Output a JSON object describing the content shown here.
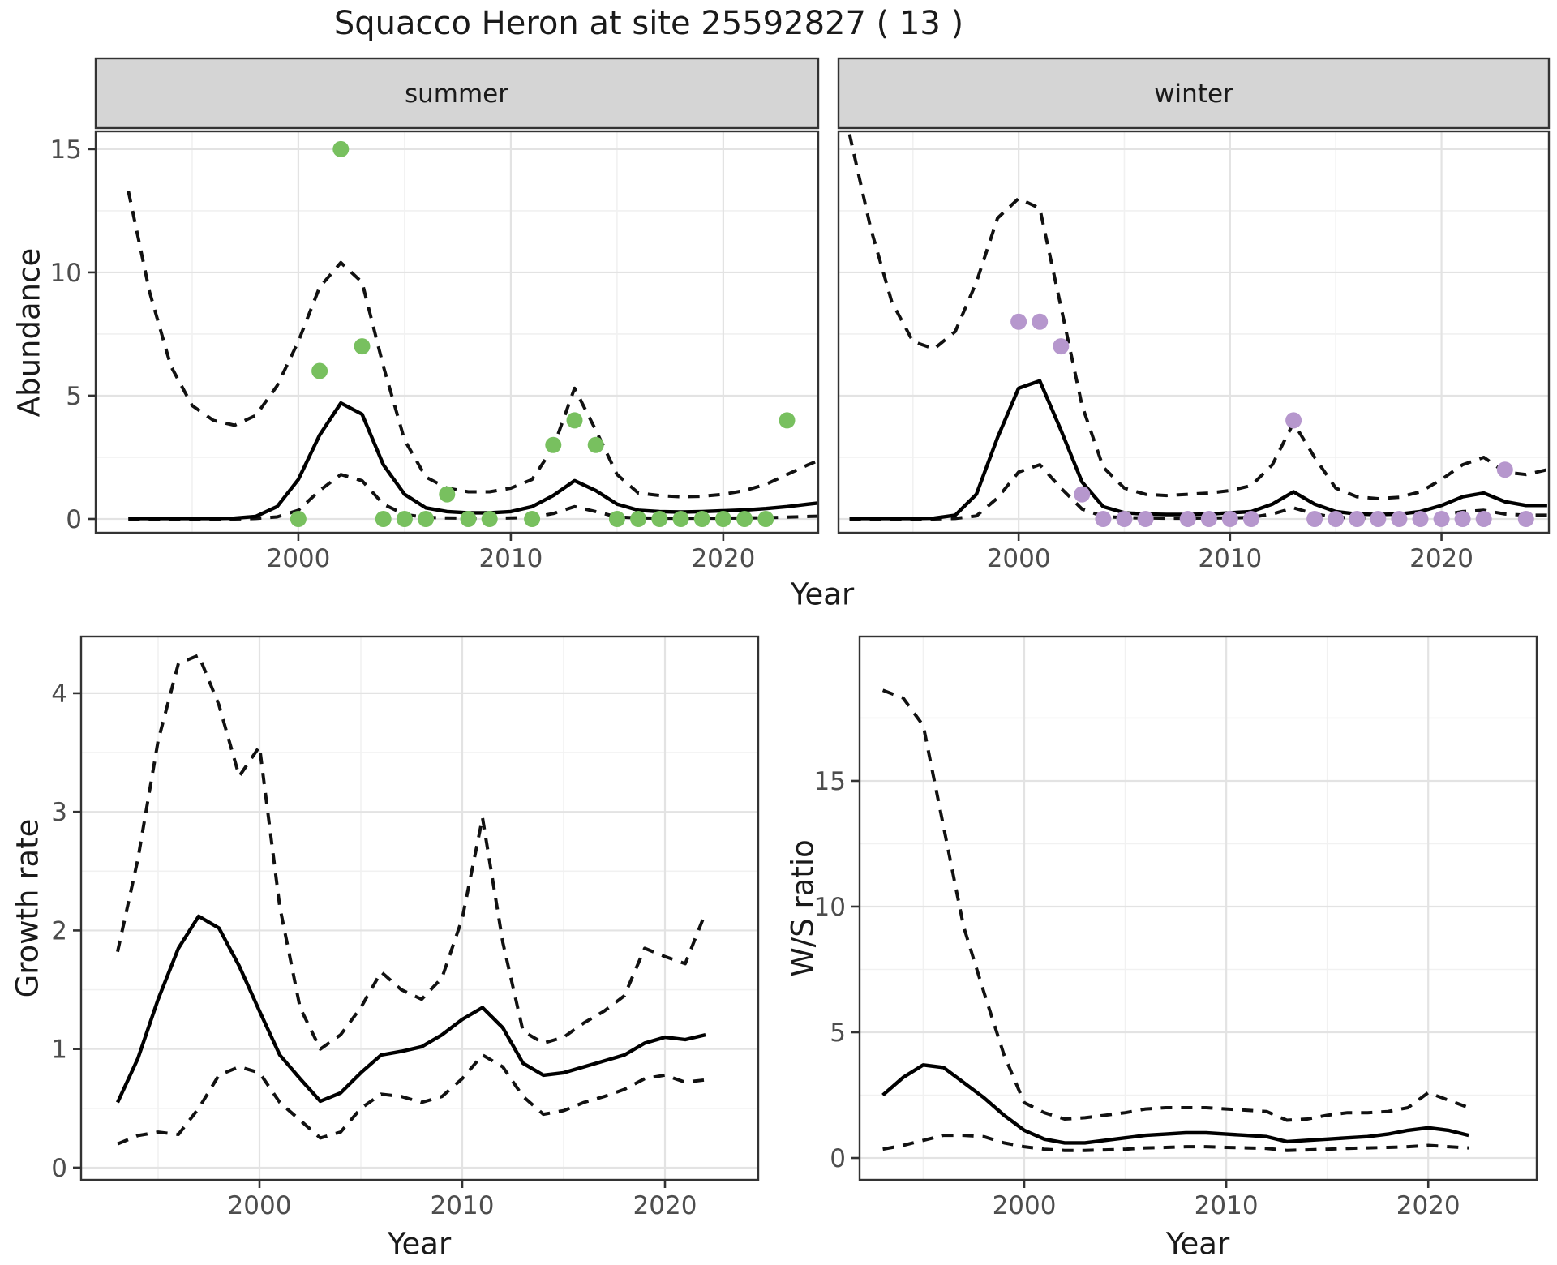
{
  "title": "Squacco Heron at site 25592827 ( 13 )",
  "colors": {
    "summer_point": "#78c05f",
    "winter_point": "#b697cd",
    "fit_line": "#000000",
    "ci_line": "#111111",
    "panel_border": "#333333",
    "strip_bg": "#d5d5d5",
    "grid_major": "#e3e3e3",
    "grid_minor": "#f1f1f1",
    "axis_text": "#4d4d4d",
    "tick_mark": "#333333"
  },
  "chart_data": [
    {
      "id": "abundance_summer",
      "type": "line",
      "facet_label": "summer",
      "xlabel": "Year",
      "ylabel": "Abundance",
      "xlim": [
        1990.46,
        2024.47
      ],
      "ylim": [
        -0.56,
        15.72
      ],
      "xticks": [
        2000,
        2010,
        2020
      ],
      "yticks": [
        0,
        5,
        10,
        15
      ],
      "xminor": [
        1995,
        2005,
        2015
      ],
      "yminor": [
        2.5,
        7.5,
        12.5
      ],
      "show_y_axis": true,
      "series": [
        {
          "name": "fit",
          "style": "solid",
          "x": [
            1992,
            1993,
            1994,
            1995,
            1996,
            1997,
            1998,
            1999,
            2000,
            2001,
            2002,
            2003,
            2004,
            2005,
            2006,
            2007,
            2008,
            2009,
            2010,
            2011,
            2012,
            2013,
            2014,
            2015,
            2016,
            2017,
            2018,
            2019,
            2020,
            2021,
            2022,
            2023,
            2024,
            2025
          ],
          "y": [
            0.02,
            0.02,
            0.02,
            0.02,
            0.02,
            0.03,
            0.1,
            0.5,
            1.6,
            3.4,
            4.7,
            4.25,
            2.2,
            1.0,
            0.45,
            0.3,
            0.25,
            0.25,
            0.3,
            0.5,
            0.95,
            1.55,
            1.15,
            0.6,
            0.35,
            0.3,
            0.28,
            0.3,
            0.33,
            0.36,
            0.42,
            0.5,
            0.6,
            0.7
          ]
        },
        {
          "name": "upper_ci",
          "style": "dashed",
          "x": [
            1992,
            1993,
            1994,
            1995,
            1996,
            1997,
            1998,
            1999,
            2000,
            2001,
            2002,
            2003,
            2004,
            2005,
            2006,
            2007,
            2008,
            2009,
            2010,
            2011,
            2012,
            2013,
            2014,
            2015,
            2016,
            2017,
            2018,
            2019,
            2020,
            2021,
            2022,
            2023,
            2024,
            2025
          ],
          "y": [
            13.3,
            9.2,
            6.2,
            4.6,
            4.0,
            3.8,
            4.2,
            5.4,
            7.2,
            9.4,
            10.4,
            9.6,
            6.2,
            3.2,
            1.7,
            1.25,
            1.1,
            1.1,
            1.25,
            1.6,
            2.9,
            5.3,
            3.6,
            1.8,
            1.05,
            0.95,
            0.9,
            0.92,
            1.0,
            1.15,
            1.4,
            1.8,
            2.2,
            2.55
          ]
        },
        {
          "name": "lower_ci",
          "style": "dashed",
          "x": [
            1992,
            1993,
            1994,
            1995,
            1996,
            1997,
            1998,
            1999,
            2000,
            2001,
            2002,
            2003,
            2004,
            2005,
            2006,
            2007,
            2008,
            2009,
            2010,
            2011,
            2012,
            2013,
            2014,
            2015,
            2016,
            2017,
            2018,
            2019,
            2020,
            2021,
            2022,
            2023,
            2024,
            2025
          ],
          "y": [
            0,
            0,
            0,
            0,
            0,
            0,
            0.02,
            0.08,
            0.35,
            1.15,
            1.8,
            1.55,
            0.6,
            0.18,
            0.06,
            0.04,
            0.03,
            0.03,
            0.04,
            0.06,
            0.22,
            0.5,
            0.3,
            0.08,
            0.04,
            0.03,
            0.03,
            0.03,
            0.03,
            0.04,
            0.05,
            0.07,
            0.1,
            0.12
          ]
        }
      ],
      "points": {
        "name": "observed_counts",
        "color_key": "summer_point",
        "x": [
          2000,
          2001,
          2002,
          2003,
          2004,
          2005,
          2006,
          2007,
          2008,
          2009,
          2011,
          2012,
          2013,
          2014,
          2015,
          2016,
          2017,
          2018,
          2019,
          2020,
          2021,
          2022,
          2023
        ],
        "y": [
          0,
          6,
          15,
          7,
          0,
          0,
          0,
          1,
          0,
          0,
          0,
          3,
          4,
          3,
          0,
          0,
          0,
          0,
          0,
          0,
          0,
          0,
          4
        ]
      }
    },
    {
      "id": "abundance_winter",
      "type": "line",
      "facet_label": "winter",
      "xlabel": "Year",
      "ylabel": "Abundance",
      "xlim": [
        1991.48,
        2025.08
      ],
      "ylim": [
        -0.56,
        15.72
      ],
      "xticks": [
        2000,
        2010,
        2020
      ],
      "yticks": [
        0,
        5,
        10,
        15
      ],
      "xminor": [
        1995,
        2005,
        2015
      ],
      "yminor": [
        2.5,
        7.5,
        12.5
      ],
      "show_y_axis": false,
      "series": [
        {
          "name": "fit",
          "style": "solid",
          "x": [
            1992,
            1993,
            1994,
            1995,
            1996,
            1997,
            1998,
            1999,
            2000,
            2001,
            2002,
            2003,
            2004,
            2005,
            2006,
            2007,
            2008,
            2009,
            2010,
            2011,
            2012,
            2013,
            2014,
            2015,
            2016,
            2017,
            2018,
            2019,
            2020,
            2021,
            2022,
            2023,
            2024,
            2025
          ],
          "y": [
            0.02,
            0.02,
            0.02,
            0.02,
            0.03,
            0.15,
            1.0,
            3.3,
            5.3,
            5.6,
            3.6,
            1.5,
            0.5,
            0.25,
            0.2,
            0.18,
            0.18,
            0.2,
            0.25,
            0.3,
            0.6,
            1.1,
            0.6,
            0.3,
            0.2,
            0.18,
            0.2,
            0.3,
            0.55,
            0.9,
            1.05,
            0.7,
            0.55,
            0.55
          ]
        },
        {
          "name": "upper_ci",
          "style": "dashed",
          "x": [
            1992,
            1993,
            1994,
            1995,
            1996,
            1997,
            1998,
            1999,
            2000,
            2001,
            2002,
            2003,
            2004,
            2005,
            2006,
            2007,
            2008,
            2009,
            2010,
            2011,
            2012,
            2013,
            2014,
            2015,
            2016,
            2017,
            2018,
            2019,
            2020,
            2021,
            2022,
            2023,
            2024,
            2025
          ],
          "y": [
            15.6,
            11.8,
            8.8,
            7.2,
            6.9,
            7.6,
            9.6,
            12.2,
            13.0,
            12.6,
            8.6,
            4.6,
            2.1,
            1.25,
            1.0,
            0.95,
            1.0,
            1.05,
            1.15,
            1.35,
            2.2,
            3.9,
            2.5,
            1.25,
            0.9,
            0.82,
            0.88,
            1.1,
            1.6,
            2.2,
            2.5,
            1.9,
            1.8,
            2.0
          ]
        },
        {
          "name": "lower_ci",
          "style": "dashed",
          "x": [
            1992,
            1993,
            1994,
            1995,
            1996,
            1997,
            1998,
            1999,
            2000,
            2001,
            2002,
            2003,
            2004,
            2005,
            2006,
            2007,
            2008,
            2009,
            2010,
            2011,
            2012,
            2013,
            2014,
            2015,
            2016,
            2017,
            2018,
            2019,
            2020,
            2021,
            2022,
            2023,
            2024,
            2025
          ],
          "y": [
            0,
            0,
            0,
            0,
            0,
            0.02,
            0.12,
            0.85,
            1.9,
            2.2,
            1.25,
            0.4,
            0.1,
            0.05,
            0.04,
            0.03,
            0.03,
            0.04,
            0.04,
            0.06,
            0.2,
            0.45,
            0.2,
            0.06,
            0.04,
            0.03,
            0.04,
            0.06,
            0.15,
            0.3,
            0.35,
            0.2,
            0.15,
            0.15
          ]
        }
      ],
      "points": {
        "name": "observed_counts",
        "color_key": "winter_point",
        "x": [
          2000,
          2001,
          2002,
          2003,
          2004,
          2005,
          2006,
          2008,
          2009,
          2010,
          2011,
          2013,
          2014,
          2015,
          2016,
          2017,
          2018,
          2019,
          2020,
          2021,
          2022,
          2023,
          2024
        ],
        "y": [
          8,
          8,
          7,
          1,
          0,
          0,
          0,
          0,
          0,
          0,
          0,
          4,
          0,
          0,
          0,
          0,
          0,
          0,
          0,
          0,
          0,
          2,
          0
        ]
      }
    },
    {
      "id": "growth_rate",
      "type": "line",
      "facet_label": null,
      "xlabel": "Year",
      "ylabel": "Growth rate",
      "xlim": [
        1991.2,
        2024.6
      ],
      "ylim": [
        -0.103,
        4.478
      ],
      "xticks": [
        2000,
        2010,
        2020
      ],
      "yticks": [
        0,
        1,
        2,
        3,
        4
      ],
      "xminor": [
        1995,
        2005,
        2015
      ],
      "yminor": [
        0.5,
        1.5,
        2.5,
        3.5
      ],
      "show_y_axis": true,
      "series": [
        {
          "name": "fit",
          "style": "solid",
          "x": [
            1993,
            1994,
            1995,
            1996,
            1997,
            1998,
            1999,
            2000,
            2001,
            2002,
            2003,
            2004,
            2005,
            2006,
            2007,
            2008,
            2009,
            2010,
            2011,
            2012,
            2013,
            2014,
            2015,
            2016,
            2017,
            2018,
            2019,
            2020,
            2021,
            2022
          ],
          "y": [
            0.55,
            0.92,
            1.42,
            1.85,
            2.12,
            2.02,
            1.7,
            1.32,
            0.95,
            0.75,
            0.56,
            0.63,
            0.8,
            0.95,
            0.98,
            1.02,
            1.12,
            1.25,
            1.35,
            1.18,
            0.88,
            0.78,
            0.8,
            0.85,
            0.9,
            0.95,
            1.05,
            1.1,
            1.08,
            1.12
          ]
        },
        {
          "name": "upper_ci",
          "style": "dashed",
          "x": [
            1993,
            1994,
            1995,
            1996,
            1997,
            1998,
            1999,
            2000,
            2001,
            2002,
            2003,
            2004,
            2005,
            2006,
            2007,
            2008,
            2009,
            2010,
            2011,
            2012,
            2013,
            2014,
            2015,
            2016,
            2017,
            2018,
            2019,
            2020,
            2021,
            2022
          ],
          "y": [
            1.82,
            2.6,
            3.6,
            4.25,
            4.32,
            3.9,
            3.3,
            3.55,
            2.2,
            1.35,
            1.0,
            1.12,
            1.35,
            1.65,
            1.5,
            1.42,
            1.6,
            2.1,
            2.95,
            1.9,
            1.15,
            1.05,
            1.1,
            1.22,
            1.32,
            1.45,
            1.85,
            1.78,
            1.72,
            2.15
          ]
        },
        {
          "name": "lower_ci",
          "style": "dashed",
          "x": [
            1993,
            1994,
            1995,
            1996,
            1997,
            1998,
            1999,
            2000,
            2001,
            2002,
            2003,
            2004,
            2005,
            2006,
            2007,
            2008,
            2009,
            2010,
            2011,
            2012,
            2013,
            2014,
            2015,
            2016,
            2017,
            2018,
            2019,
            2020,
            2021,
            2022
          ],
          "y": [
            0.2,
            0.27,
            0.3,
            0.28,
            0.5,
            0.78,
            0.85,
            0.8,
            0.55,
            0.4,
            0.25,
            0.3,
            0.5,
            0.62,
            0.6,
            0.55,
            0.6,
            0.75,
            0.95,
            0.85,
            0.6,
            0.45,
            0.48,
            0.55,
            0.6,
            0.66,
            0.75,
            0.78,
            0.72,
            0.74
          ]
        }
      ],
      "points": null
    },
    {
      "id": "ws_ratio",
      "type": "line",
      "facet_label": null,
      "xlabel": "Year",
      "ylabel": "W/S ratio",
      "xlim": [
        1991.85,
        2025.37
      ],
      "ylim": [
        -0.87,
        20.74
      ],
      "xticks": [
        2000,
        2010,
        2020
      ],
      "yticks": [
        0,
        5,
        10,
        15
      ],
      "xminor": [
        1995,
        2005,
        2015
      ],
      "yminor": [
        2.5,
        7.5,
        12.5,
        17.5
      ],
      "show_y_axis": true,
      "series": [
        {
          "name": "fit",
          "style": "solid",
          "x": [
            1993,
            1994,
            1995,
            1996,
            1997,
            1998,
            1999,
            2000,
            2001,
            2002,
            2003,
            2004,
            2005,
            2006,
            2007,
            2008,
            2009,
            2010,
            2011,
            2012,
            2013,
            2014,
            2015,
            2016,
            2017,
            2018,
            2019,
            2020,
            2021,
            2022
          ],
          "y": [
            2.5,
            3.2,
            3.7,
            3.6,
            3.0,
            2.4,
            1.7,
            1.1,
            0.75,
            0.6,
            0.6,
            0.7,
            0.8,
            0.9,
            0.95,
            1.0,
            1.0,
            0.95,
            0.9,
            0.85,
            0.65,
            0.7,
            0.75,
            0.8,
            0.85,
            0.95,
            1.1,
            1.2,
            1.1,
            0.9
          ]
        },
        {
          "name": "upper_ci",
          "style": "dashed",
          "x": [
            1993,
            1994,
            1995,
            1996,
            1997,
            1998,
            1999,
            2000,
            2001,
            2002,
            2003,
            2004,
            2005,
            2006,
            2007,
            2008,
            2009,
            2010,
            2011,
            2012,
            2013,
            2014,
            2015,
            2016,
            2017,
            2018,
            2019,
            2020,
            2021,
            2022
          ],
          "y": [
            18.6,
            18.3,
            17.2,
            13.2,
            9.2,
            6.6,
            4.1,
            2.2,
            1.8,
            1.55,
            1.6,
            1.7,
            1.8,
            1.95,
            2.0,
            2.0,
            2.0,
            1.95,
            1.9,
            1.85,
            1.5,
            1.55,
            1.7,
            1.8,
            1.8,
            1.85,
            2.0,
            2.6,
            2.3,
            2.0
          ]
        },
        {
          "name": "lower_ci",
          "style": "dashed",
          "x": [
            1993,
            1994,
            1995,
            1996,
            1997,
            1998,
            1999,
            2000,
            2001,
            2002,
            2003,
            2004,
            2005,
            2006,
            2007,
            2008,
            2009,
            2010,
            2011,
            2012,
            2013,
            2014,
            2015,
            2016,
            2017,
            2018,
            2019,
            2020,
            2021,
            2022
          ],
          "y": [
            0.35,
            0.5,
            0.7,
            0.9,
            0.9,
            0.85,
            0.6,
            0.45,
            0.35,
            0.3,
            0.3,
            0.32,
            0.35,
            0.4,
            0.42,
            0.45,
            0.45,
            0.42,
            0.4,
            0.38,
            0.3,
            0.32,
            0.35,
            0.38,
            0.4,
            0.42,
            0.45,
            0.5,
            0.45,
            0.4
          ]
        }
      ],
      "points": null
    }
  ]
}
